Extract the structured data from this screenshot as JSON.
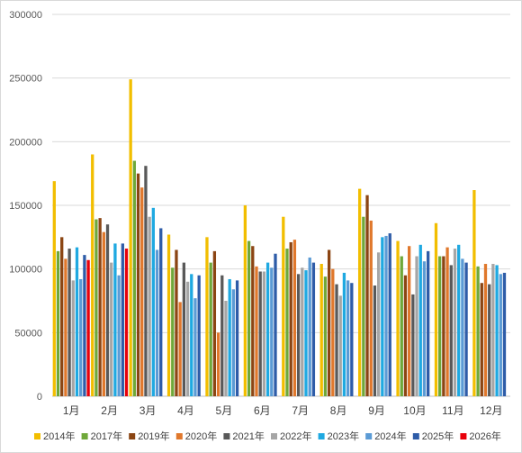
{
  "chart_data": {
    "type": "bar",
    "categories": [
      "1月",
      "2月",
      "3月",
      "4月",
      "5月",
      "6月",
      "7月",
      "8月",
      "9月",
      "10月",
      "11月",
      "12月"
    ],
    "ylim": [
      0,
      300000
    ],
    "yticks": [
      0,
      50000,
      100000,
      150000,
      200000,
      250000,
      300000
    ],
    "ytick_labels": [
      "0",
      "50000",
      "100000",
      "150000",
      "200000",
      "250000",
      "300000"
    ],
    "grid": true,
    "legend_position": "bottom",
    "series": [
      {
        "name": "2014年",
        "color": "#F2BE00",
        "values": [
          169000,
          190000,
          249000,
          127000,
          125000,
          150000,
          141000,
          104000,
          163000,
          122000,
          136000,
          162000
        ]
      },
      {
        "name": "2017年",
        "color": "#6FA83A",
        "values": [
          114000,
          139000,
          185000,
          101000,
          105000,
          122000,
          116000,
          94000,
          141000,
          110000,
          110000,
          102000
        ]
      },
      {
        "name": "2019年",
        "color": "#8B4513",
        "values": [
          125000,
          140000,
          175000,
          115000,
          114000,
          118000,
          121000,
          115000,
          158000,
          95000,
          110000,
          89000
        ]
      },
      {
        "name": "2020年",
        "color": "#E0782C",
        "values": [
          108000,
          129000,
          164000,
          74000,
          50000,
          102000,
          123000,
          100000,
          138000,
          118000,
          117000,
          104000
        ]
      },
      {
        "name": "2021年",
        "color": "#595959",
        "values": [
          116000,
          135000,
          181000,
          105000,
          95000,
          98000,
          96000,
          88000,
          87000,
          80000,
          103000,
          88000
        ]
      },
      {
        "name": "2022年",
        "color": "#A6A6A6",
        "values": [
          91000,
          105000,
          141000,
          90000,
          75000,
          98000,
          101000,
          79000,
          113000,
          110000,
          116000,
          104000
        ]
      },
      {
        "name": "2023年",
        "color": "#1FA9E1",
        "values": [
          117000,
          120000,
          148000,
          96000,
          92000,
          105000,
          99000,
          97000,
          125000,
          119000,
          119000,
          103000
        ]
      },
      {
        "name": "2024年",
        "color": "#5B9BD5",
        "values": [
          92000,
          95000,
          115000,
          77000,
          84000,
          101000,
          109000,
          91000,
          126000,
          106000,
          108000,
          96000
        ]
      },
      {
        "name": "2025年",
        "color": "#2E5CA8",
        "values": [
          111000,
          120000,
          132000,
          95000,
          91000,
          112000,
          105000,
          89000,
          128000,
          114000,
          105000,
          97000
        ]
      },
      {
        "name": "2026年",
        "color": "#E8000B",
        "values": [
          107000,
          116000,
          null,
          null,
          null,
          null,
          null,
          null,
          null,
          null,
          null,
          null
        ]
      }
    ]
  }
}
